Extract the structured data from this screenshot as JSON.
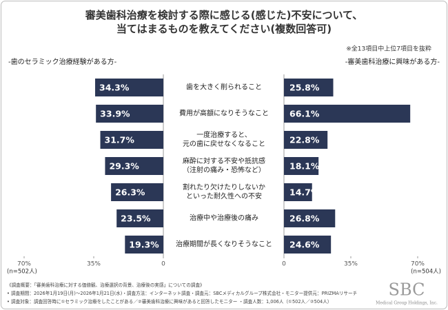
{
  "chart_data": {
    "type": "butterfly_bar",
    "title": "審美歯科治療を検討する際に感じる(感じた)不安について、\n当てはまるものを教えてください(複数回答可)",
    "note": "※全13項目中上位7項目を抜粋",
    "categories": [
      "歯を大きく削られること",
      "費用が高額になりそうなこと",
      "一度治療すると、\n元の歯に戻せなくなること",
      "麻酔に対する不安や抵抗感\n（注射の痛み・恐怖など）",
      "割れたり欠けたりしないか\nといった耐久性への不安",
      "治療中や治療後の痛み",
      "治療期間が長くなりそうなこと"
    ],
    "series": [
      {
        "name": "-歯のセラミック治療経験がある方-",
        "color": "#2b3756",
        "n": "(n=502人)",
        "values": [
          34.3,
          33.9,
          31.7,
          29.3,
          26.3,
          23.5,
          19.3
        ],
        "value_labels": [
          "34.3%",
          "33.9%",
          "31.7%",
          "29.3%",
          "26.3%",
          "23.5%",
          "19.3%"
        ],
        "xlim": [
          0,
          70
        ],
        "xticks": [
          {
            "value": 70,
            "label": "70%"
          },
          {
            "value": 35,
            "label": "35%"
          },
          0
        ]
      },
      {
        "name": "-審美歯科治療に興味がある方-",
        "color": "#2b3756",
        "n": "(n=504人)",
        "values": [
          25.8,
          66.1,
          22.8,
          18.1,
          14.7,
          26.8,
          24.6
        ],
        "value_labels": [
          "25.8%",
          "66.1%",
          "22.8%",
          "18.1%",
          "14.7%",
          "26.8%",
          "24.6%"
        ],
        "xlim": [
          0,
          70
        ],
        "xticks": [
          0,
          {
            "value": 35,
            "label": "35%"
          },
          {
            "value": 70,
            "label": "70%"
          }
        ]
      }
    ]
  },
  "footnotes": [
    "《調査概要：「審美歯科治療に対する価値観、治療選択の背景、治療後の実感」についての調査》",
    "• 調査期間：2026年1月19日(月)〜2026年1月21日(水)・調査方法：インターネット調査・調査元：SBCメディカルグループ株式会社・モニター提供元：PRIZMAリサーチ",
    "• 調査対象：調査回答時に①セラミック治療をしたことがある／②審美歯科治療に興味があると回答したモニター ・調査人数：1,006人（①502人／②504人）"
  ],
  "logo": {
    "name": "SBC",
    "sub": "Medical Group Holdings, Inc."
  }
}
